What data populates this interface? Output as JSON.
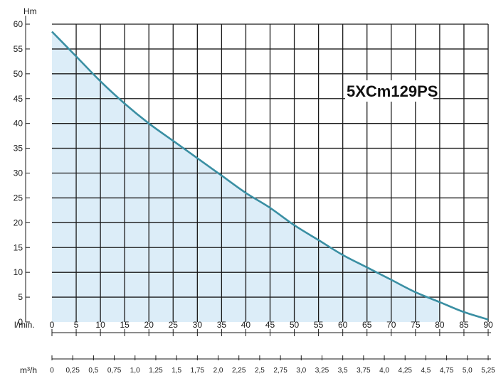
{
  "chart_data": {
    "type": "area",
    "title": "",
    "model_label": "5XCm129PS",
    "ylabel": "Hm",
    "xlabel": "l/min.",
    "secondary_xlabel": "m³/h",
    "ylim": [
      0,
      60
    ],
    "xlim": [
      0,
      90
    ],
    "y_ticks": [
      "0",
      "5",
      "10",
      "15",
      "20",
      "25",
      "30",
      "35",
      "40",
      "45",
      "50",
      "55",
      "60"
    ],
    "x_ticks": [
      "0",
      "5",
      "10",
      "15",
      "20",
      "25",
      "30",
      "35",
      "40",
      "45",
      "50",
      "55",
      "60",
      "65",
      "70",
      "75",
      "80",
      "85",
      "90"
    ],
    "secondary_x_ticks": [
      "0",
      "0,25",
      "0,5",
      "0,75",
      "1,0",
      "1,25",
      "1,5",
      "1,75",
      "2,0",
      "2,25",
      "2,5",
      "2,75",
      "3,0",
      "3,25",
      "3,5",
      "3,75",
      "4,0",
      "4,25",
      "4,5",
      "4,75",
      "5,0",
      "5,25"
    ],
    "grid": true,
    "series": [
      {
        "x": [
          0,
          5,
          10,
          15,
          20,
          25,
          30,
          35,
          40,
          45,
          50,
          55,
          60,
          65,
          70,
          75,
          80,
          85,
          90
        ],
        "y": [
          58.5,
          53.5,
          48.5,
          44,
          40,
          36.5,
          33,
          29.5,
          26,
          23,
          19.5,
          16.5,
          13.5,
          11,
          8.5,
          6,
          4,
          2,
          0.5
        ],
        "color": "#3a8fa3",
        "fill": "#dcedf8"
      }
    ]
  }
}
